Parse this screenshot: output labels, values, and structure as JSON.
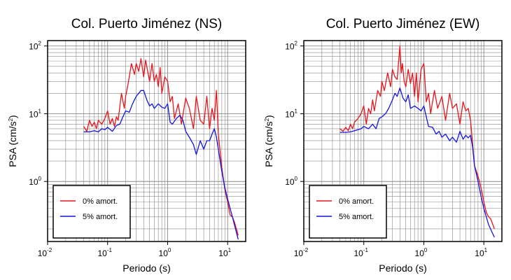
{
  "chart_data": [
    {
      "type": "line",
      "title": "Col. Puerto Jiménez (NS)",
      "xlabel": "Periodo (s)",
      "ylabel": "PSA (cm/s2)",
      "xscale": "log",
      "yscale": "log",
      "xlim": [
        0.01,
        20
      ],
      "ylim": [
        0.13,
        120
      ],
      "grid": true,
      "legend_position": "bottom-left",
      "series": [
        {
          "name": "0% amort.",
          "color": "#e8141b",
          "x": [
            0.04,
            0.045,
            0.05,
            0.055,
            0.06,
            0.065,
            0.07,
            0.08,
            0.09,
            0.1,
            0.11,
            0.12,
            0.13,
            0.14,
            0.15,
            0.17,
            0.19,
            0.2,
            0.22,
            0.25,
            0.28,
            0.3,
            0.33,
            0.36,
            0.4,
            0.43,
            0.46,
            0.5,
            0.55,
            0.6,
            0.65,
            0.7,
            0.75,
            0.8,
            0.9,
            1.0,
            1.1,
            1.2,
            1.3,
            1.5,
            1.7,
            2.0,
            2.3,
            2.7,
            3.0,
            3.5,
            4.0,
            4.5,
            5.0,
            5.5,
            6.0,
            6.5,
            7.0,
            8.0,
            9.0,
            10.0,
            11.0,
            12.0,
            13.0,
            15.0
          ],
          "y": [
            6.5,
            5.5,
            8,
            6.5,
            7.5,
            6,
            8,
            7,
            8.5,
            11,
            7,
            8.5,
            6.5,
            9,
            8,
            20,
            12,
            18,
            28,
            55,
            38,
            55,
            42,
            65,
            35,
            62,
            45,
            30,
            55,
            30,
            38,
            25,
            48,
            20,
            35,
            30,
            15,
            18,
            8.5,
            14,
            7,
            17,
            12,
            6,
            18,
            8,
            7,
            18,
            6,
            12,
            8,
            22,
            5,
            1.6,
            0.75,
            0.5,
            0.32,
            0.3,
            0.25,
            0.16
          ]
        },
        {
          "name": "5% amort.",
          "color": "#1414e0",
          "x": [
            0.04,
            0.05,
            0.06,
            0.07,
            0.08,
            0.09,
            0.1,
            0.12,
            0.14,
            0.16,
            0.18,
            0.2,
            0.23,
            0.26,
            0.3,
            0.33,
            0.36,
            0.4,
            0.45,
            0.5,
            0.55,
            0.6,
            0.7,
            0.8,
            0.9,
            1.0,
            1.1,
            1.2,
            1.4,
            1.6,
            1.8,
            2.0,
            2.3,
            2.7,
            3.0,
            3.5,
            4.0,
            4.5,
            5.0,
            5.5,
            6.0,
            6.5,
            7.0,
            7.5,
            8.0,
            9.0,
            10.0,
            12.0,
            15.0
          ],
          "y": [
            5.4,
            5.4,
            5.6,
            5.4,
            6,
            5.8,
            6.3,
            5.5,
            6.7,
            7,
            9,
            11,
            10.5,
            14,
            18,
            20,
            22,
            22,
            16,
            13,
            14,
            12,
            14,
            12.5,
            12,
            14,
            7.5,
            7,
            8.5,
            9.5,
            8,
            5.5,
            4.5,
            3.5,
            2.5,
            4,
            3,
            4,
            4,
            5,
            6,
            4.5,
            3,
            2,
            1.4,
            0.8,
            0.55,
            0.3,
            0.14
          ]
        }
      ]
    },
    {
      "type": "line",
      "title": "Col. Puerto Jiménez (EW)",
      "xlabel": "Periodo (s)",
      "ylabel": "PSA (cm/s2)",
      "xscale": "log",
      "yscale": "log",
      "xlim": [
        0.01,
        20
      ],
      "ylim": [
        0.13,
        120
      ],
      "grid": true,
      "legend_position": "bottom-left",
      "series": [
        {
          "name": "0% amort.",
          "color": "#e8141b",
          "x": [
            0.04,
            0.045,
            0.05,
            0.055,
            0.06,
            0.065,
            0.07,
            0.08,
            0.09,
            0.1,
            0.11,
            0.12,
            0.13,
            0.14,
            0.15,
            0.17,
            0.19,
            0.2,
            0.22,
            0.25,
            0.28,
            0.3,
            0.33,
            0.36,
            0.4,
            0.42,
            0.44,
            0.47,
            0.5,
            0.55,
            0.6,
            0.65,
            0.7,
            0.75,
            0.8,
            0.9,
            1.0,
            1.1,
            1.2,
            1.3,
            1.5,
            1.7,
            2.0,
            2.3,
            2.7,
            3.0,
            3.5,
            4.0,
            4.5,
            5.0,
            5.5,
            6.0,
            7.0,
            8.0,
            9.0,
            10.0,
            11.0,
            12.0,
            13.0,
            15.0
          ],
          "y": [
            6,
            5.5,
            6.3,
            5.6,
            7,
            6,
            7.5,
            8.5,
            10,
            13,
            7,
            12,
            10,
            16,
            11,
            22,
            18,
            30,
            22,
            40,
            25,
            45,
            35,
            32,
            100,
            40,
            55,
            30,
            25,
            45,
            28,
            40,
            18,
            40,
            15,
            45,
            55,
            15,
            20,
            10,
            22,
            12,
            18,
            8,
            20,
            12,
            14,
            7,
            15,
            11,
            12,
            8,
            1.7,
            1.2,
            0.8,
            0.5,
            0.35,
            0.3,
            0.28,
            0.2
          ]
        },
        {
          "name": "5% amort.",
          "color": "#1414e0",
          "x": [
            0.04,
            0.05,
            0.06,
            0.07,
            0.08,
            0.09,
            0.1,
            0.12,
            0.14,
            0.16,
            0.18,
            0.2,
            0.23,
            0.26,
            0.3,
            0.33,
            0.36,
            0.4,
            0.45,
            0.5,
            0.55,
            0.6,
            0.7,
            0.8,
            0.9,
            1.0,
            1.1,
            1.2,
            1.4,
            1.6,
            1.8,
            2.0,
            2.3,
            2.7,
            3.0,
            3.5,
            4.0,
            4.5,
            5.0,
            5.5,
            6.0,
            6.5,
            7.0,
            7.5,
            8.0,
            9.0,
            10.0,
            12.0,
            15.0
          ],
          "y": [
            5.3,
            5.3,
            5.4,
            5.6,
            5.8,
            6,
            6.5,
            6,
            7,
            6,
            8.5,
            9,
            10,
            12,
            16,
            20,
            18,
            24,
            17,
            15,
            19,
            12,
            13,
            12,
            11,
            13,
            9,
            6.5,
            6.3,
            5,
            5.5,
            4.5,
            5,
            4,
            4.5,
            3.8,
            5.5,
            4.2,
            4.8,
            4.4,
            4.8,
            3.2,
            1.7,
            1.3,
            1,
            0.6,
            0.4,
            0.23,
            0.15
          ]
        }
      ]
    }
  ]
}
